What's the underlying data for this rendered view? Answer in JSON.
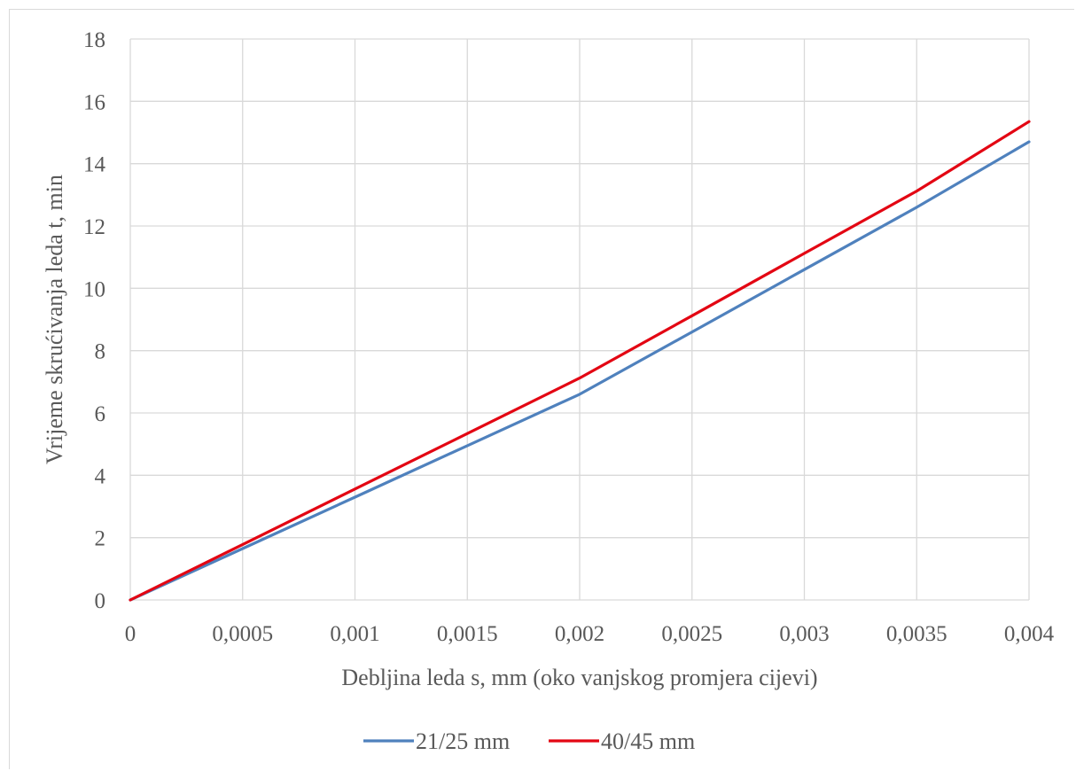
{
  "chart_data": {
    "type": "line",
    "title": "",
    "xlabel": "Debljina leda s, mm (oko vanjskog promjera cijevi)",
    "ylabel": "Vrijeme skrućivanja leda t, min",
    "xlim": [
      0,
      0.004
    ],
    "ylim": [
      0,
      18
    ],
    "x_ticks": [
      "0",
      "0,0005",
      "0,001",
      "0,0015",
      "0,002",
      "0,0025",
      "0,003",
      "0,0035",
      "0,004"
    ],
    "y_ticks": [
      "0",
      "2",
      "4",
      "6",
      "8",
      "10",
      "12",
      "14",
      "16",
      "18"
    ],
    "grid": true,
    "legend_position": "bottom",
    "series": [
      {
        "name": "21/25 mm",
        "color": "#4f81bd",
        "x": [
          0,
          0.0005,
          0.001,
          0.0015,
          0.002,
          0.0025,
          0.003,
          0.0035,
          0.004
        ],
        "y": [
          0,
          1.65,
          3.3,
          4.95,
          6.6,
          8.6,
          10.6,
          12.6,
          14.7
        ]
      },
      {
        "name": "40/45 mm",
        "color": "#e30613",
        "x": [
          0,
          0.0005,
          0.001,
          0.0015,
          0.002,
          0.0025,
          0.003,
          0.0035,
          0.004
        ],
        "y": [
          0,
          1.78,
          3.56,
          5.34,
          7.12,
          9.12,
          11.12,
          13.12,
          15.35
        ]
      }
    ]
  }
}
